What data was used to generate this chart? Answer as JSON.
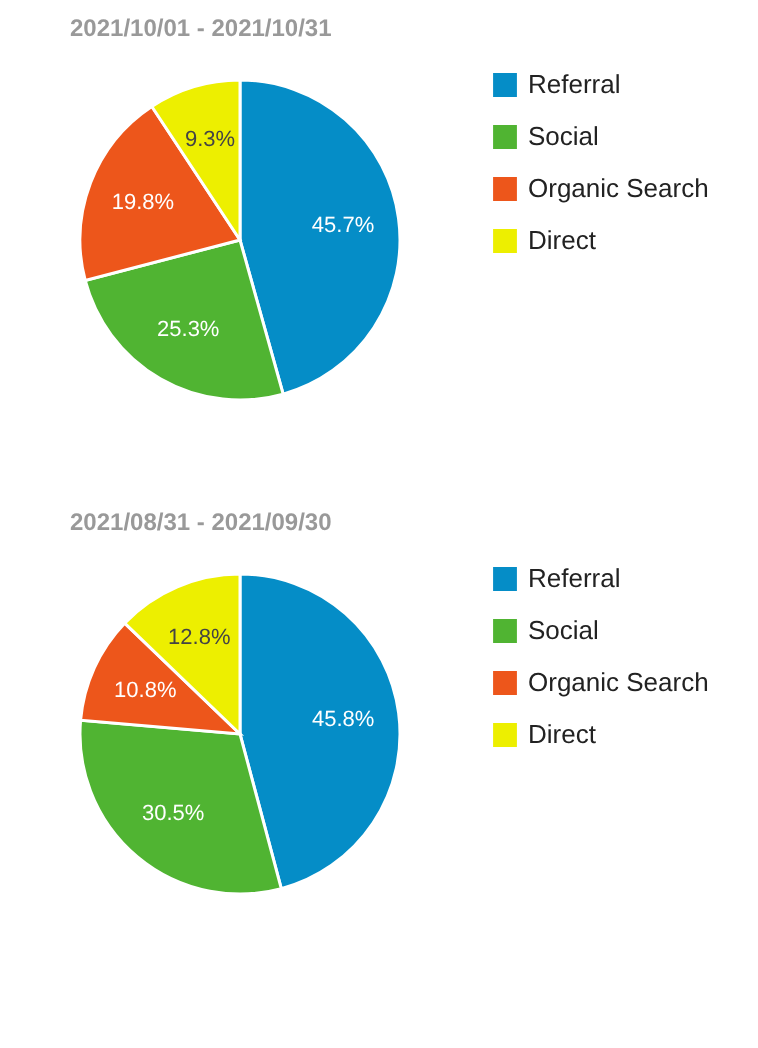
{
  "chart_data": [
    {
      "type": "pie",
      "title": "2021/10/01 - 2021/10/31",
      "categories": [
        "Referral",
        "Social",
        "Organic Search",
        "Direct"
      ],
      "values": [
        45.7,
        25.3,
        19.8,
        9.3
      ],
      "value_labels": [
        "45.7%",
        "25.3%",
        "19.8%",
        "9.3%"
      ],
      "colors": [
        "#058dc7",
        "#50b432",
        "#ed561b",
        "#edef00"
      ],
      "legend": "right"
    },
    {
      "type": "pie",
      "title": "2021/08/31 - 2021/09/30",
      "categories": [
        "Referral",
        "Social",
        "Organic Search",
        "Direct"
      ],
      "values": [
        45.8,
        30.5,
        10.8,
        12.8
      ],
      "value_labels": [
        "45.8%",
        "30.5%",
        "10.8%",
        "12.8%"
      ],
      "colors": [
        "#058dc7",
        "#50b432",
        "#ed561b",
        "#edef00"
      ],
      "legend": "right"
    }
  ]
}
